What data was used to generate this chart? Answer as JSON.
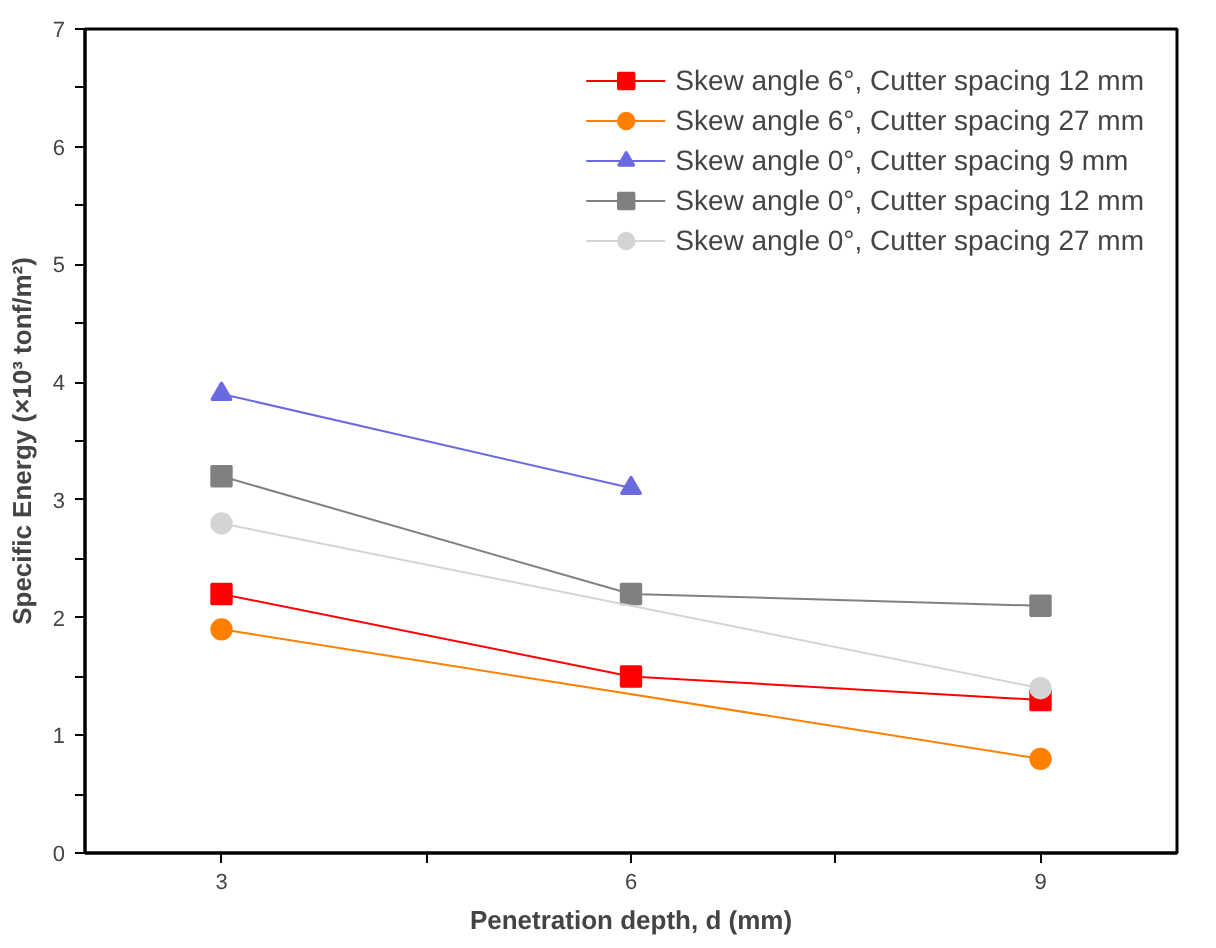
{
  "chart_data": {
    "type": "line",
    "xlabel": "Penetration depth, d (mm)",
    "ylabel": "Specific Energy (×10³ tonf/m²)",
    "xlim": [
      2,
      10
    ],
    "xticks": [
      3,
      {
        "value": 4.5,
        "label": null
      },
      6,
      {
        "value": 7.5,
        "label": null
      },
      9
    ],
    "ylim": [
      0,
      7
    ],
    "yticks": [
      0,
      {
        "value": 0.5,
        "label": null
      },
      1,
      {
        "value": 1.5,
        "label": null
      },
      2,
      {
        "value": 2.5,
        "label": null
      },
      3,
      {
        "value": 3.5,
        "label": null
      },
      4,
      {
        "value": 4.5,
        "label": null
      },
      5,
      {
        "value": 5.5,
        "label": null
      },
      6,
      {
        "value": 6.5,
        "label": null
      },
      7
    ],
    "grid": false,
    "legend": "top right",
    "series": [
      {
        "name": "Skew angle 6°, Cutter spacing 12 mm",
        "color": "#ff0000",
        "marker": "square",
        "x": [
          3,
          6,
          9
        ],
        "values": [
          2.2,
          1.5,
          1.3
        ]
      },
      {
        "name": "Skew angle 6°, Cutter spacing 27 mm",
        "color": "#ff8000",
        "marker": "circle",
        "x": [
          3,
          9
        ],
        "values": [
          1.9,
          0.8
        ]
      },
      {
        "name": "Skew angle 0°, Cutter spacing 9 mm",
        "color": "#6a6ae0",
        "marker": "triangle",
        "x": [
          3,
          6
        ],
        "values": [
          3.9,
          3.1
        ]
      },
      {
        "name": "Skew angle 0°, Cutter spacing 12 mm",
        "color": "#808080",
        "marker": "square",
        "x": [
          3,
          6,
          9
        ],
        "values": [
          3.2,
          2.2,
          2.1
        ]
      },
      {
        "name": "Skew angle 0°, Cutter spacing 27 mm",
        "color": "#d4d4d4",
        "marker": "circle",
        "x": [
          3,
          9
        ],
        "values": [
          2.8,
          1.4
        ]
      }
    ]
  }
}
